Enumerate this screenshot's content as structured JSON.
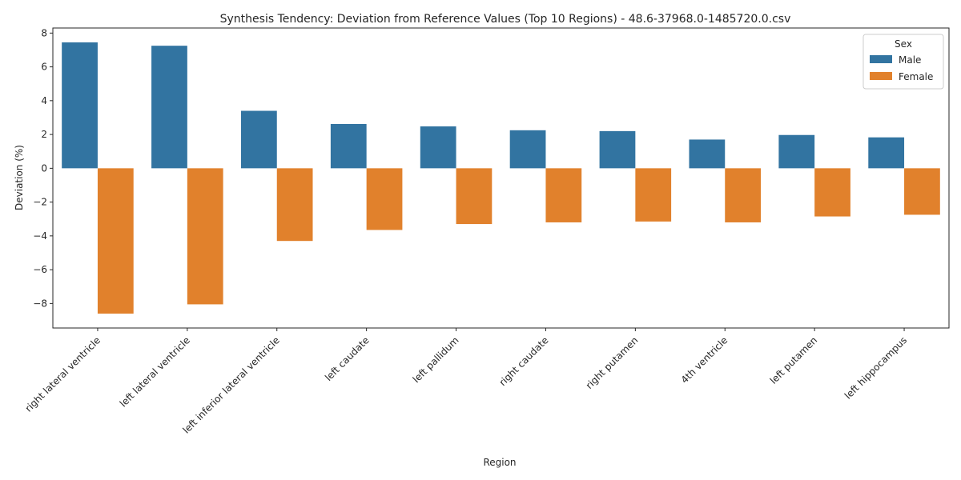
{
  "chart_data": {
    "type": "bar",
    "title": "Synthesis Tendency: Deviation from Reference Values (Top 10 Regions) - 48.6-37968.0-1485720.0.csv",
    "xlabel": "Region",
    "ylabel": "Deviation (%)",
    "categories": [
      "right lateral ventricle",
      "left lateral ventricle",
      "left inferior lateral ventricle",
      "left caudate",
      "left pallidum",
      "right caudate",
      "right putamen",
      "4th ventricle",
      "left putamen",
      "left hippocampus"
    ],
    "series": [
      {
        "name": "Male",
        "color": "#3274a1",
        "values": [
          7.45,
          7.25,
          3.4,
          2.62,
          2.48,
          2.25,
          2.2,
          1.7,
          1.97,
          1.83
        ]
      },
      {
        "name": "Female",
        "color": "#e1812c",
        "values": [
          -8.6,
          -8.05,
          -4.3,
          -3.65,
          -3.3,
          -3.2,
          -3.15,
          -3.2,
          -2.85,
          -2.75
        ]
      }
    ],
    "ylim": [
      -9.45,
      8.3
    ],
    "yticks": [
      -8,
      -6,
      -4,
      -2,
      0,
      2,
      4,
      6,
      8
    ],
    "ytick_labels": [
      "−8",
      "−6",
      "−4",
      "−2",
      "0",
      "2",
      "4",
      "6",
      "8"
    ],
    "legend": {
      "title": "Sex",
      "position": "top-right"
    },
    "grid": false
  }
}
